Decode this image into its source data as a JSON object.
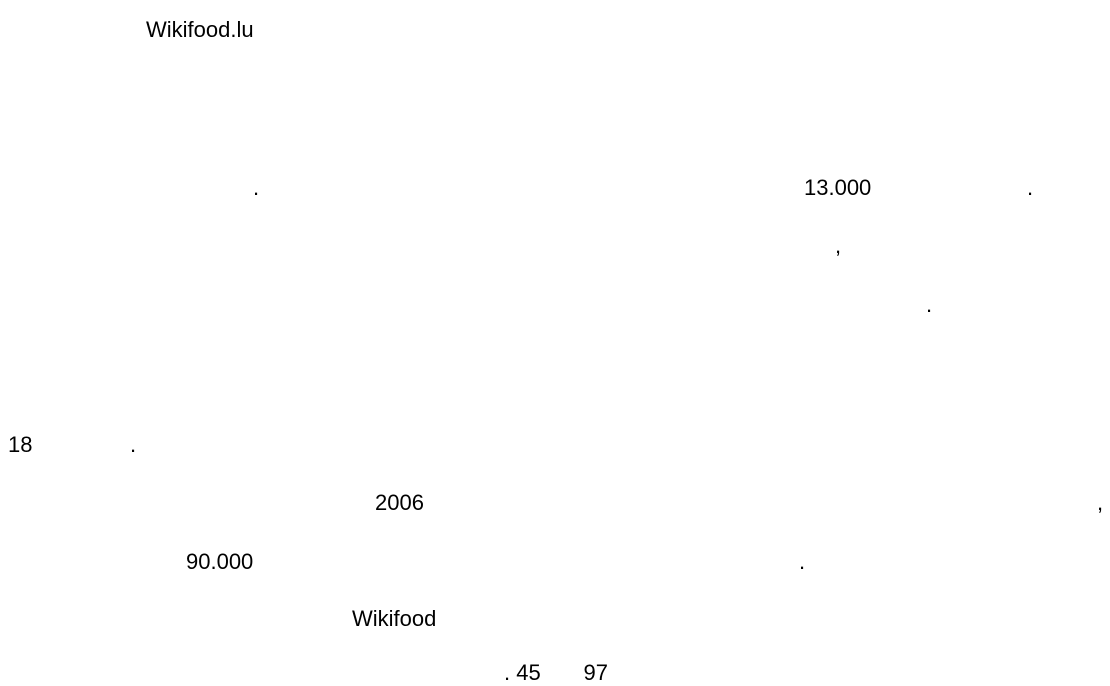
{
  "document": {
    "title": "Wikifood.lu",
    "paragraph1": {
      "dot1": ".",
      "number": "13.000",
      "dot2": ".",
      "comma": ",",
      "dot3": "."
    },
    "paragraph2": {
      "number": "18",
      "dot1": ".",
      "year": "2006",
      "comma": ",",
      "number2": "90.000",
      "dot2": ".",
      "brand": "Wikifood",
      "ending": ". 45       97"
    }
  }
}
